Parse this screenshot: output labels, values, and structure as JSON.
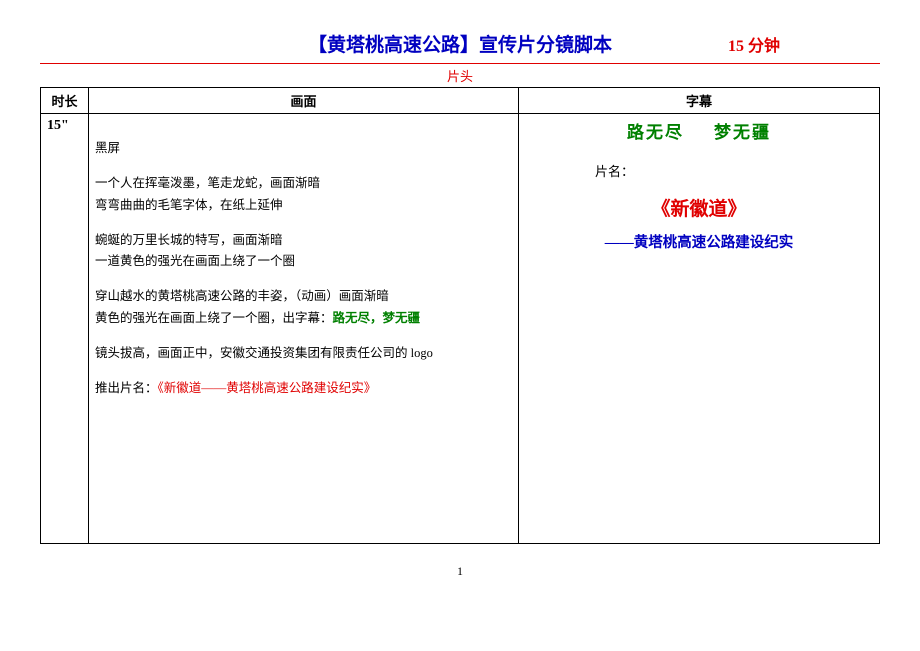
{
  "header": {
    "title": "【黄塔桃高速公路】宣传片分镜脚本",
    "duration": "15 分钟"
  },
  "section_label": "片头",
  "columns": {
    "time": "时长",
    "scene": "画面",
    "subtitle": "字幕"
  },
  "row": {
    "time": "15\"",
    "scene": {
      "p1": "黑屏",
      "p2": "一个人在挥毫泼墨，笔走龙蛇，画面渐暗\n弯弯曲曲的毛笔字体，在纸上延伸",
      "p3": "蜿蜒的万里长城的特写，画面渐暗\n一道黄色的强光在画面上绕了一个圈",
      "p4a": "穿山越水的黄塔桃高速公路的丰姿，（动画）画面渐暗\n黄色的强光在画面上绕了一个圈，出字幕：",
      "p4b": "路无尽，梦无疆",
      "p5": "镜头拔高，画面正中，安徽交通投资集团有限责任公司的 logo",
      "p6a": "推出片名：",
      "p6b": "《新徽道——黄塔桃高速公路建设纪实》"
    },
    "subtitle": {
      "line1a": "路无尽",
      "line1b": "梦无疆",
      "line2": "片名：",
      "line3": "《新徽道》",
      "line4": "——黄塔桃高速公路建设纪实"
    }
  },
  "page_number": "1",
  "colors": {
    "title_blue": "#0000c0",
    "accent_red": "#e00000",
    "accent_green": "#008000",
    "text_black": "#000000",
    "border": "#000000",
    "background": "#ffffff"
  }
}
